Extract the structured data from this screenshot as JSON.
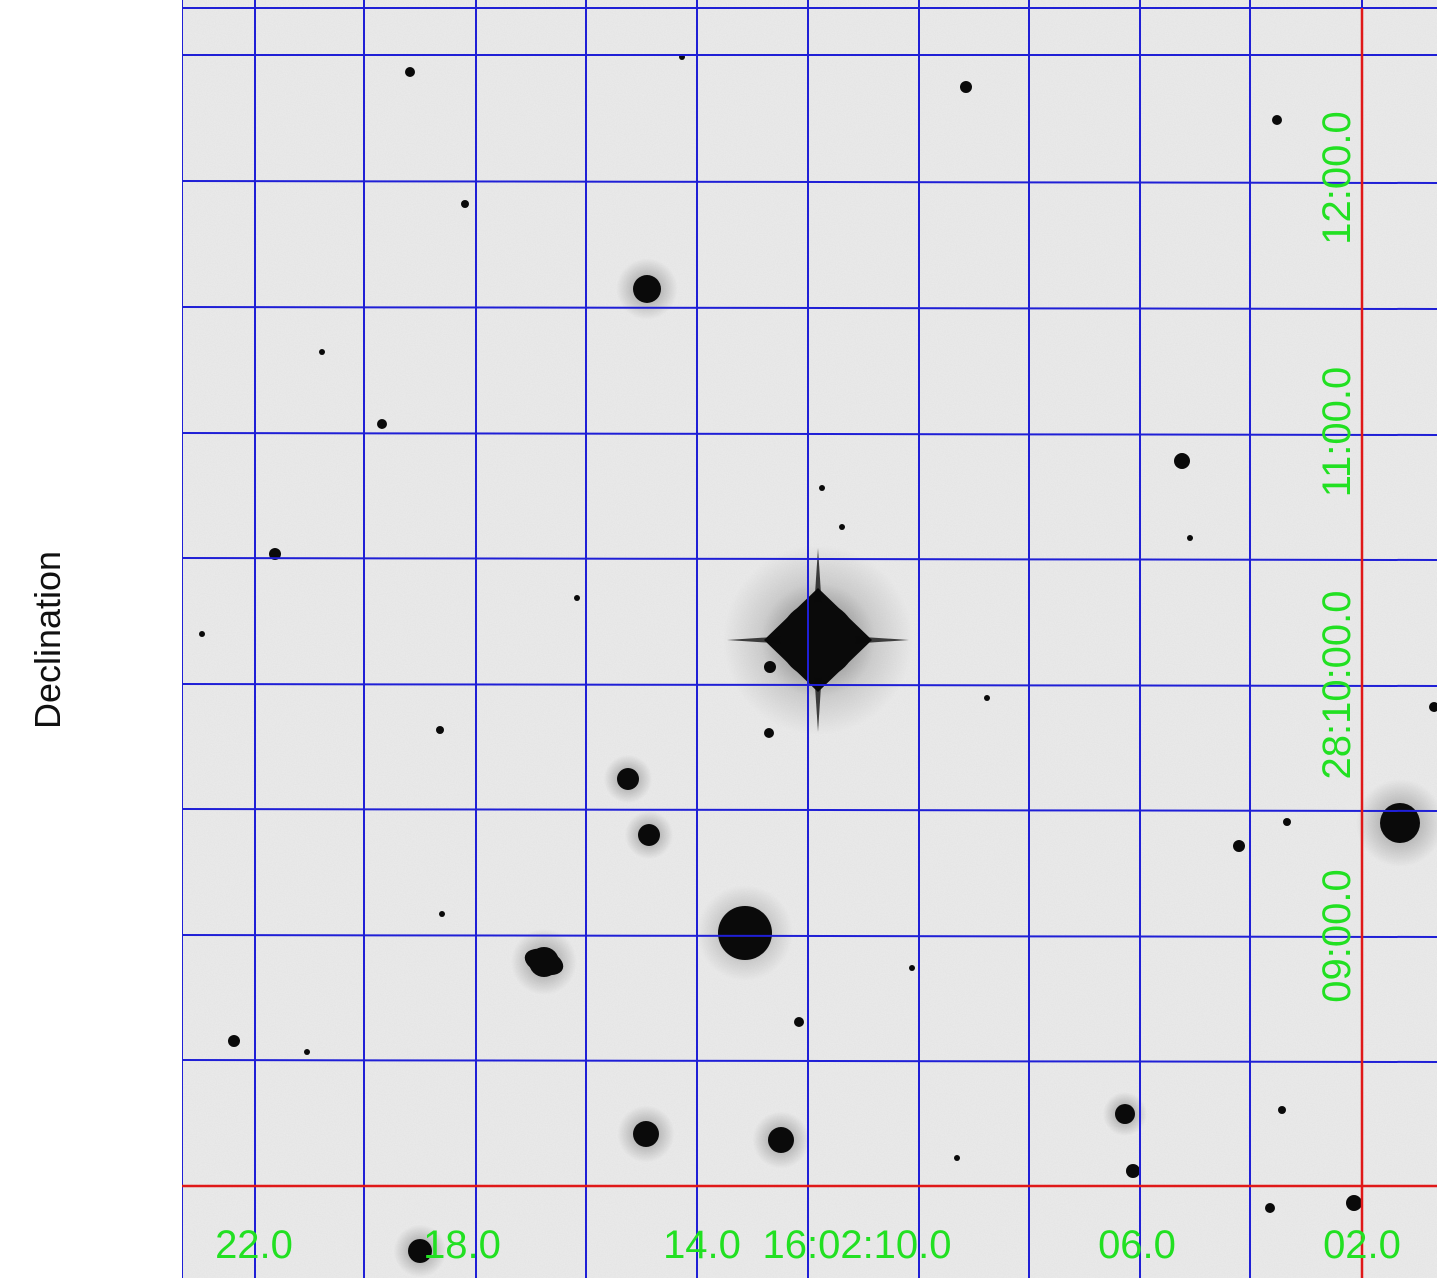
{
  "axis": {
    "ylabel": "Declination"
  },
  "ra_labels": [
    "22.0",
    "18.0",
    "14.0",
    "16:02:10.0",
    "06.0",
    "02.0"
  ],
  "dec_labels": [
    "12:00.0",
    "11:00.0",
    "28:10:00.0",
    "09:00.0"
  ],
  "colors": {
    "sky": "#ececec",
    "grid": "#1f1fd6",
    "reference_lines": "#e01818",
    "labels": "#22e022",
    "stars": "#0a0a0a"
  }
}
